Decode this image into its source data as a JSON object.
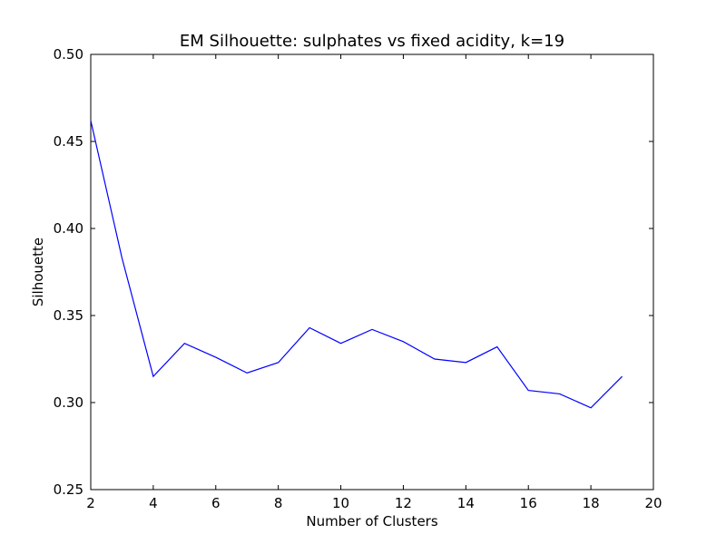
{
  "chart_data": {
    "type": "line",
    "title": "EM Silhouette: sulphates vs fixed acidity, k=19",
    "xlabel": "Number of Clusters",
    "ylabel": "Silhouette",
    "xlim": [
      2,
      20
    ],
    "ylim": [
      0.25,
      0.5
    ],
    "xticks": [
      2,
      4,
      6,
      8,
      10,
      12,
      14,
      16,
      18,
      20
    ],
    "yticks": [
      0.25,
      0.3,
      0.35,
      0.4,
      0.45,
      0.5
    ],
    "xtick_labels": [
      "2",
      "4",
      "6",
      "8",
      "10",
      "12",
      "14",
      "16",
      "18",
      "20"
    ],
    "ytick_labels": [
      "0.25",
      "0.30",
      "0.35",
      "0.40",
      "0.45",
      "0.50"
    ],
    "grid": false,
    "series": [
      {
        "color": "#0000ff",
        "x": [
          2,
          3,
          4,
          5,
          6,
          7,
          8,
          9,
          10,
          11,
          12,
          13,
          14,
          15,
          16,
          17,
          18,
          19
        ],
        "y": [
          0.462,
          0.383,
          0.315,
          0.334,
          0.326,
          0.317,
          0.323,
          0.343,
          0.334,
          0.342,
          0.335,
          0.325,
          0.323,
          0.332,
          0.307,
          0.305,
          0.297,
          0.315
        ]
      }
    ]
  }
}
